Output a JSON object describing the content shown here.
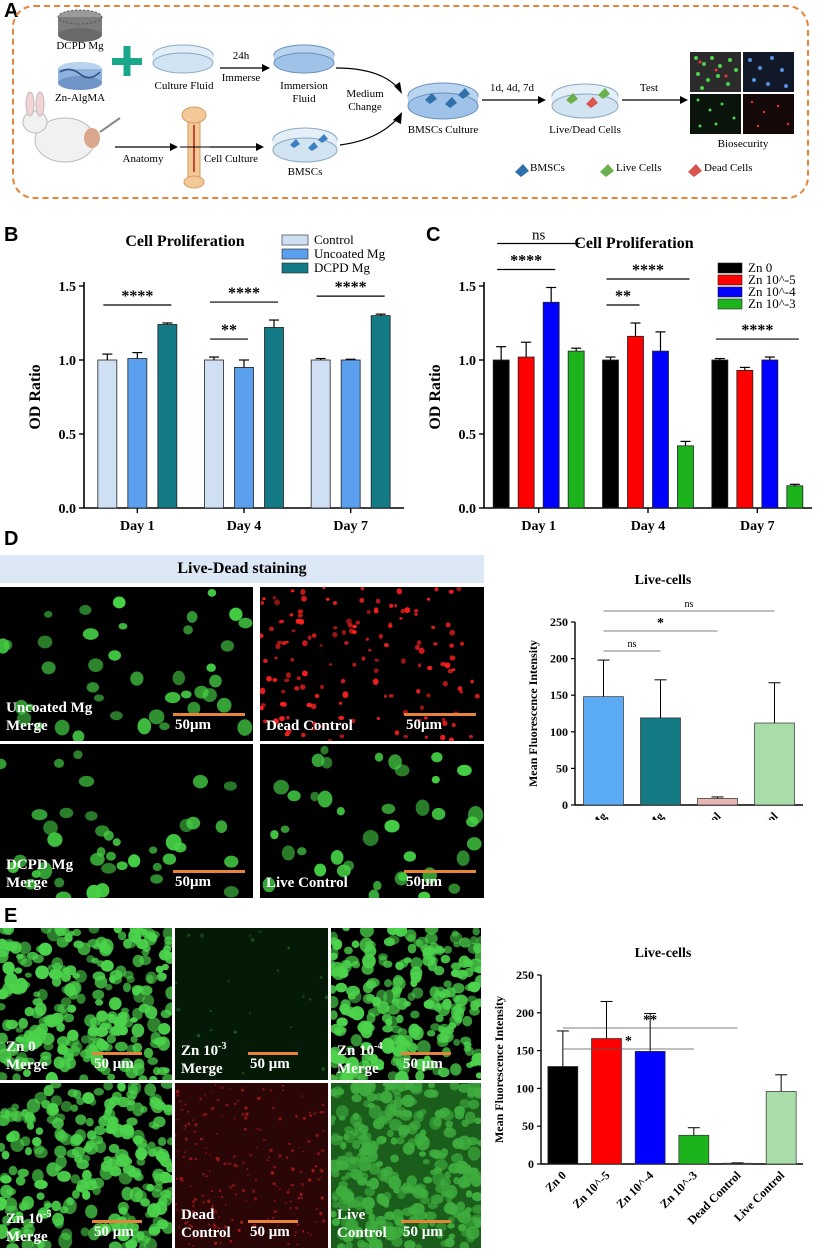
{
  "panel_letters": {
    "a": "A",
    "b": "B",
    "c": "C",
    "d": "D",
    "e": "E"
  },
  "schematic": {
    "dcpd_mg": "DCPD Mg",
    "zn_algma": "Zn-AlgMA",
    "culture_fluid": "Culture Fluid",
    "time_24h": "24h",
    "immerse": "Immerse",
    "immersion_fluid_1": "Immersion",
    "immersion_fluid_2": "Fluid",
    "medium_change_1": "Medium",
    "medium_change_2": "Change",
    "anatomy": "Anatomy",
    "cell_culture": "Cell Culture",
    "bmscs": "BMSCs",
    "bmscs_culture": "BMSCs Culture",
    "days": "1d, 4d, 7d",
    "live_dead_cells": "Live/Dead Cells",
    "test": "Test",
    "biosecurity": "Biosecurity",
    "legend_bmscs": "BMSCs",
    "legend_live": "Live Cells",
    "legend_dead": "Dead Cells"
  },
  "staining_header": "Live-Dead staining",
  "micrographs_d": [
    {
      "label1": "Uncoated Mg",
      "label2": "Merge",
      "scale": "50μm",
      "color": "#3ec83e"
    },
    {
      "label1": "Dead Control",
      "label2": "",
      "scale": "50μm",
      "color": "#e02020"
    },
    {
      "label1": "DCPD Mg",
      "label2": "Merge",
      "scale": "50μm",
      "color": "#3ec83e"
    },
    {
      "label1": "Live Control",
      "label2": "",
      "scale": "50μm",
      "color": "#3ec83e"
    }
  ],
  "micrographs_e": [
    {
      "label1": "Zn 0",
      "label2": "Merge",
      "scale": "50 μm"
    },
    {
      "label1": "Zn 10",
      "sup": "-3",
      "label2": "Merge",
      "scale": "50 μm"
    },
    {
      "label1": "Zn 10",
      "sup": "-4",
      "label2": "Merge",
      "scale": "50 μm"
    },
    {
      "label1": "Zn 10",
      "sup": "-5",
      "label2": "Merge",
      "scale": "50 μm"
    },
    {
      "label1": "Dead",
      "label2": "Control",
      "scale": "50 μm"
    },
    {
      "label1": "Live",
      "label2": "Control",
      "scale": "50 μm"
    }
  ],
  "chart_data": [
    {
      "id": "B",
      "type": "bar",
      "title": "Cell Proliferation",
      "ylabel": "OD Ratio",
      "xlabel": "",
      "categories": [
        "Day 1",
        "Day 4",
        "Day 7"
      ],
      "ylim": [
        0,
        1.5
      ],
      "yticks": [
        "0.0",
        "0.5",
        "1.0",
        "1.5"
      ],
      "series": [
        {
          "name": "Control",
          "color": "#cfe0f5",
          "values": [
            1.0,
            1.0,
            1.0
          ],
          "errors": [
            0.04,
            0.02,
            0.01
          ]
        },
        {
          "name": "Uncoated Mg",
          "color": "#5aa0ee",
          "values": [
            1.01,
            0.95,
            1.0
          ],
          "errors": [
            0.04,
            0.05,
            0.005
          ]
        },
        {
          "name": "DCPD Mg",
          "color": "#137a86",
          "values": [
            1.24,
            1.22,
            1.3
          ],
          "errors": [
            0.01,
            0.05,
            0.01
          ]
        }
      ],
      "significance": [
        {
          "group": 0,
          "from": 0,
          "to": 2,
          "label": "****"
        },
        {
          "group": 1,
          "from": 0,
          "to": 1,
          "label": "**"
        },
        {
          "group": 1,
          "from": 0,
          "to": 2,
          "label": "****"
        },
        {
          "group": 2,
          "from": 0,
          "to": 2,
          "label": "****"
        }
      ],
      "legend": "top-right"
    },
    {
      "id": "C",
      "type": "bar",
      "title": "Cell Proliferation",
      "ylabel": "OD Ratio",
      "xlabel": "",
      "categories": [
        "Day 1",
        "Day 4",
        "Day 7"
      ],
      "ylim": [
        0,
        1.5
      ],
      "yticks": [
        "0.0",
        "0.5",
        "1.0",
        "1.5"
      ],
      "series": [
        {
          "name": "Zn 0",
          "color": "#000000",
          "values": [
            1.0,
            1.0,
            1.0
          ],
          "errors": [
            0.09,
            0.02,
            0.01
          ]
        },
        {
          "name": "Zn 10^-5",
          "color": "#ff0000",
          "values": [
            1.02,
            1.16,
            0.93
          ],
          "errors": [
            0.1,
            0.09,
            0.02
          ]
        },
        {
          "name": "Zn 10^-4",
          "color": "#0000ff",
          "values": [
            1.39,
            1.06,
            1.0
          ],
          "errors": [
            0.1,
            0.13,
            0.02
          ]
        },
        {
          "name": "Zn 10^-3",
          "color": "#1db31d",
          "values": [
            1.06,
            0.42,
            0.15
          ],
          "errors": [
            0.02,
            0.03,
            0.01
          ]
        }
      ],
      "significance": [
        {
          "group": 0,
          "from": 0,
          "to": 3,
          "label": "ns"
        },
        {
          "group": 0,
          "from": 0,
          "to": 2,
          "label": "****"
        },
        {
          "group": 1,
          "from": 0,
          "to": 1,
          "label": "**"
        },
        {
          "group": 1,
          "from": 0,
          "to": 3,
          "label": "****"
        },
        {
          "group": 2,
          "from": 0,
          "to": 3,
          "label": "****"
        }
      ],
      "legend": "top-right"
    },
    {
      "id": "D",
      "type": "bar",
      "title": "Live-cells",
      "ylabel": "Mean Fluorescence Intensity",
      "xlabel": "",
      "categories": [
        "Uncoated Mg",
        "DCPD Mg",
        "Dead Control",
        "Live Control"
      ],
      "ylim": [
        0,
        250
      ],
      "yticks": [
        "0",
        "50",
        "100",
        "150",
        "200",
        "250"
      ],
      "colors": [
        "#5aaaf5",
        "#137a86",
        "#e8b4b4",
        "#a8dca8"
      ],
      "values": [
        148,
        119,
        9,
        112
      ],
      "errors": [
        50,
        52,
        2,
        55
      ],
      "significance": [
        {
          "from": 0,
          "to": 1,
          "label": "ns"
        },
        {
          "from": 0,
          "to": 2,
          "label": "*"
        },
        {
          "from": 0,
          "to": 3,
          "label": "ns"
        }
      ]
    },
    {
      "id": "E",
      "type": "bar",
      "title": "Live-cells",
      "ylabel": "Mean Fluorescence Intensity",
      "xlabel": "",
      "categories": [
        "Zn 0",
        "Zn 10^-5",
        "Zn 10^-4",
        "Zn 10^-3",
        "Dead Control",
        "Live Control"
      ],
      "ylim": [
        0,
        250
      ],
      "yticks": [
        "0",
        "50",
        "100",
        "150",
        "200",
        "250"
      ],
      "colors": [
        "#000000",
        "#ff0000",
        "#0000ff",
        "#1db31d",
        "#e8b4b4",
        "#a8dca8"
      ],
      "values": [
        129,
        166,
        149,
        38,
        1,
        96
      ],
      "errors": [
        47,
        49,
        50,
        10,
        0.5,
        22
      ],
      "significance": [
        {
          "from": 0,
          "to": 3,
          "label": "*"
        },
        {
          "from": 0,
          "to": 4,
          "label": "**"
        }
      ]
    }
  ]
}
